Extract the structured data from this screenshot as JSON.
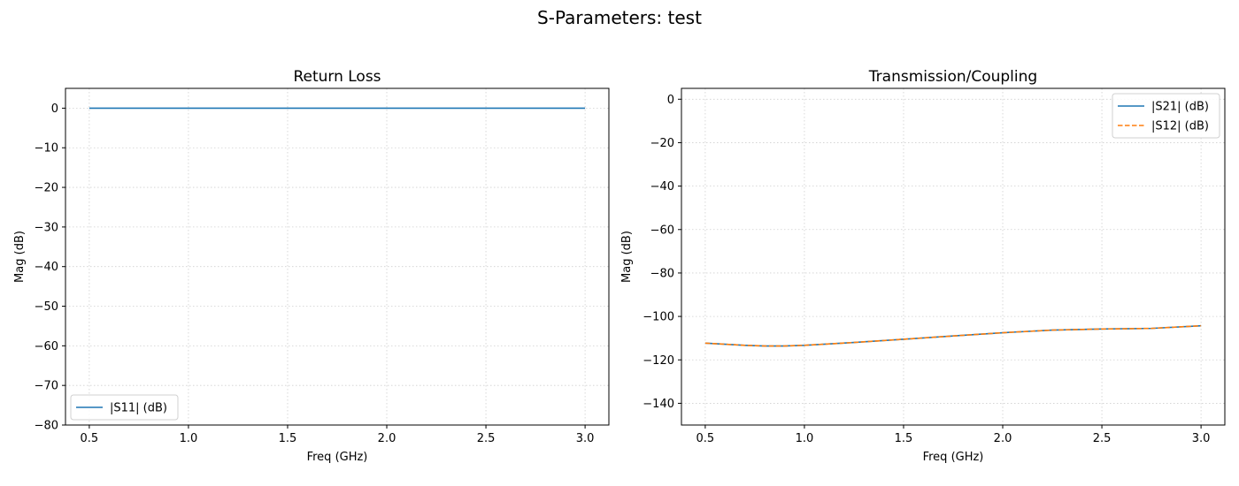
{
  "figure": {
    "suptitle": "S-Parameters: test"
  },
  "chart_data": [
    {
      "type": "line",
      "title": "Return Loss",
      "xlabel": "Freq (GHz)",
      "ylabel": "Mag (dB)",
      "xlim": [
        0.38,
        3.12
      ],
      "ylim": [
        -80,
        5
      ],
      "xticks": [
        0.5,
        1.0,
        1.5,
        2.0,
        2.5,
        3.0
      ],
      "xtick_labels": [
        "0.5",
        "1.0",
        "1.5",
        "2.0",
        "2.5",
        "3.0"
      ],
      "yticks": [
        0,
        -10,
        -20,
        -30,
        -40,
        -50,
        -60,
        -70,
        -80
      ],
      "ytick_labels": [
        "0",
        "−10",
        "−20",
        "−30",
        "−40",
        "−50",
        "−60",
        "−70",
        "−80"
      ],
      "grid": true,
      "legend_loc": "lower-left",
      "series": [
        {
          "name": "|S11| (dB)",
          "color": "#1f77b4",
          "dash": "solid",
          "x": [
            0.5,
            0.75,
            1.0,
            1.25,
            1.5,
            1.75,
            2.0,
            2.25,
            2.5,
            2.75,
            3.0
          ],
          "y": [
            0,
            0,
            0,
            0,
            0,
            0,
            0,
            0,
            0,
            0,
            0
          ]
        }
      ]
    },
    {
      "type": "line",
      "title": "Transmission/Coupling",
      "xlabel": "Freq (GHz)",
      "ylabel": "Mag (dB)",
      "xlim": [
        0.38,
        3.12
      ],
      "ylim": [
        -150,
        5
      ],
      "xticks": [
        0.5,
        1.0,
        1.5,
        2.0,
        2.5,
        3.0
      ],
      "xtick_labels": [
        "0.5",
        "1.0",
        "1.5",
        "2.0",
        "2.5",
        "3.0"
      ],
      "yticks": [
        0,
        -20,
        -40,
        -60,
        -80,
        -100,
        -120,
        -140
      ],
      "ytick_labels": [
        "0",
        "−20",
        "−40",
        "−60",
        "−80",
        "−100",
        "−120",
        "−140"
      ],
      "grid": true,
      "legend_loc": "top-right",
      "series": [
        {
          "name": "|S21| (dB)",
          "color": "#1f77b4",
          "dash": "solid",
          "x": [
            0.5,
            0.6,
            0.7,
            0.8,
            0.9,
            1.0,
            1.25,
            1.5,
            1.75,
            2.0,
            2.25,
            2.5,
            2.75,
            3.0
          ],
          "y": [
            -112.3,
            -112.8,
            -113.3,
            -113.6,
            -113.6,
            -113.3,
            -112.0,
            -110.5,
            -109.0,
            -107.5,
            -106.3,
            -105.8,
            -105.5,
            -104.3
          ]
        },
        {
          "name": "|S12| (dB)",
          "color": "#ff7f0e",
          "dash": "dashed",
          "x": [
            0.5,
            0.6,
            0.7,
            0.8,
            0.9,
            1.0,
            1.25,
            1.5,
            1.75,
            2.0,
            2.25,
            2.5,
            2.75,
            3.0
          ],
          "y": [
            -112.3,
            -112.8,
            -113.3,
            -113.6,
            -113.6,
            -113.3,
            -112.0,
            -110.5,
            -109.0,
            -107.5,
            -106.3,
            -105.8,
            -105.5,
            -104.3
          ]
        }
      ]
    }
  ]
}
